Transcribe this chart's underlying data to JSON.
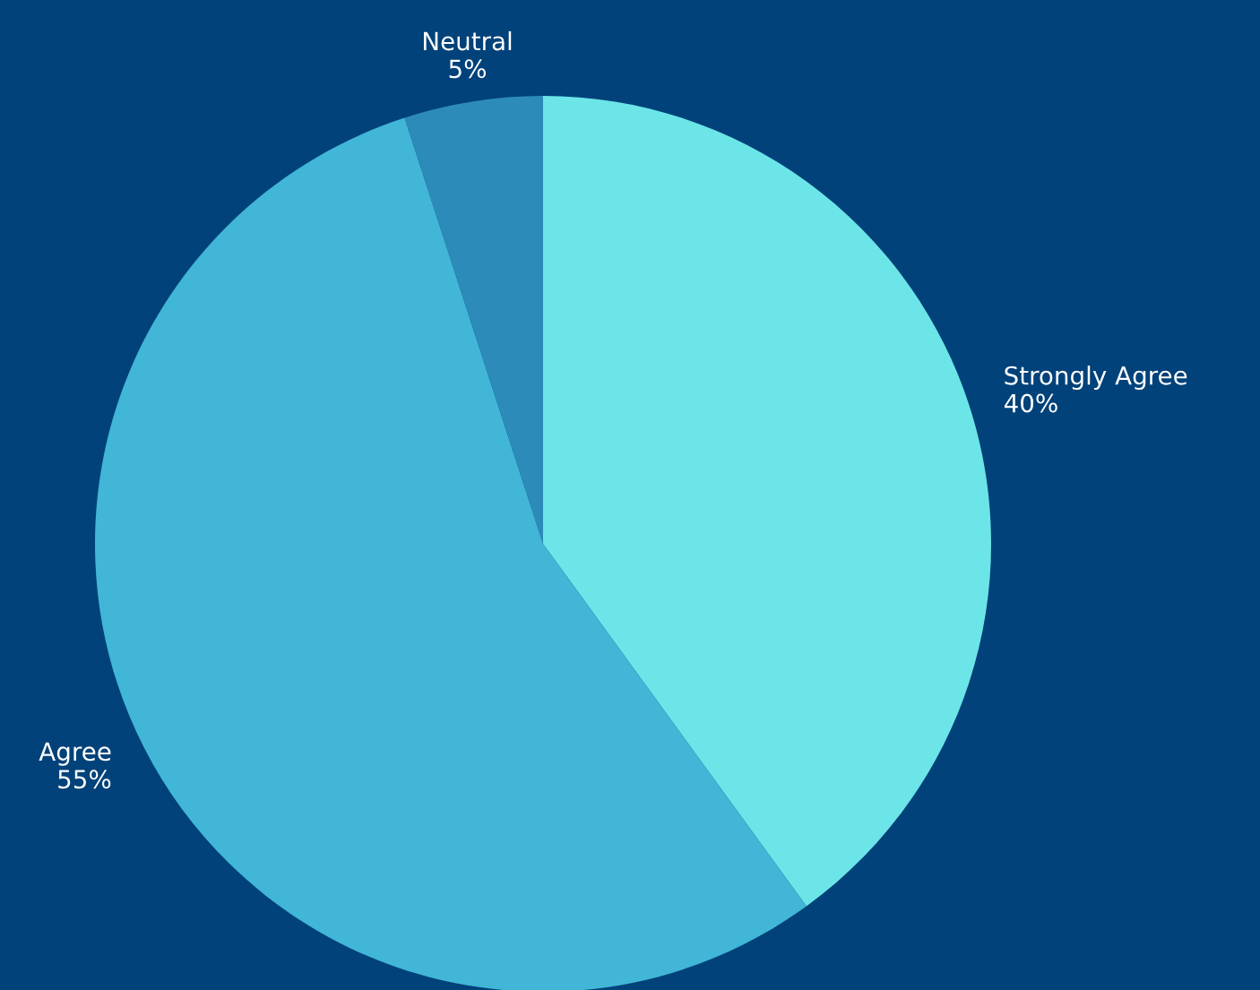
{
  "chart_data": {
    "type": "pie",
    "categories": [
      "Strongly Agree",
      "Agree",
      "Neutral"
    ],
    "values": [
      40,
      55,
      5
    ],
    "value_labels": [
      "40%",
      "55%",
      "5%"
    ],
    "colors": [
      "#6ce5e8",
      "#41b6d6",
      "#2d8bba"
    ]
  }
}
